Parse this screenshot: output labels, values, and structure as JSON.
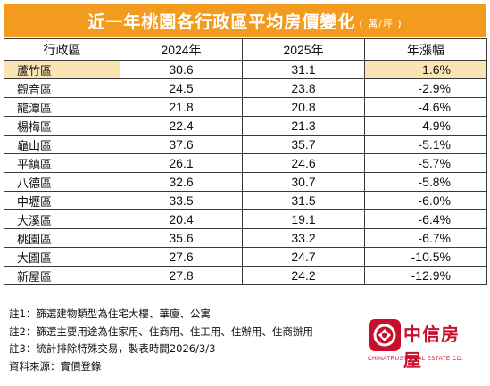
{
  "title": {
    "main": "近一年桃園各行政區平均房價變化",
    "unit": "( 萬/坪 )"
  },
  "table": {
    "headers": [
      "行政區",
      "2024年",
      "2025年",
      "年漲幅"
    ],
    "rows": [
      {
        "district": "蘆竹區",
        "y2024": "30.6",
        "y2025": "31.1",
        "change": "1.6%"
      },
      {
        "district": "觀音區",
        "y2024": "24.5",
        "y2025": "23.8",
        "change": "-2.9%"
      },
      {
        "district": "龍潭區",
        "y2024": "21.8",
        "y2025": "20.8",
        "change": "-4.6%"
      },
      {
        "district": "楊梅區",
        "y2024": "22.4",
        "y2025": "21.3",
        "change": "-4.9%"
      },
      {
        "district": "龜山區",
        "y2024": "37.6",
        "y2025": "35.7",
        "change": "-5.1%"
      },
      {
        "district": "平鎮區",
        "y2024": "26.1",
        "y2025": "24.6",
        "change": "-5.7%"
      },
      {
        "district": "八德區",
        "y2024": "32.6",
        "y2025": "30.7",
        "change": "-5.8%"
      },
      {
        "district": "中壢區",
        "y2024": "33.5",
        "y2025": "31.5",
        "change": "-6.0%"
      },
      {
        "district": "大溪區",
        "y2024": "20.4",
        "y2025": "19.1",
        "change": "-6.4%"
      },
      {
        "district": "桃園區",
        "y2024": "35.6",
        "y2025": "33.2",
        "change": "-6.7%"
      },
      {
        "district": "大園區",
        "y2024": "27.6",
        "y2025": "24.7",
        "change": "-10.5%"
      },
      {
        "district": "新屋區",
        "y2024": "27.8",
        "y2025": "24.2",
        "change": "-12.9%"
      }
    ]
  },
  "notes": [
    "註1：篩選建物類型為住宅大樓、華廈、公寓",
    "註2：篩選主要用途為住家用、住商用、住工用、住辦用、住商辦用",
    "註3：統計排除特殊交易，製表時間2026/3/3",
    "資料來源：實價登錄"
  ],
  "logo": {
    "brand": "中信房屋",
    "english": "CHINATRUST REAL ESTATE CO.",
    "icon": "chinatrust-logo-icon"
  },
  "colors": {
    "title_bg": "#f39b1f",
    "highlight_bg": "#fbe4b3",
    "brand_red": "#c8102e"
  }
}
